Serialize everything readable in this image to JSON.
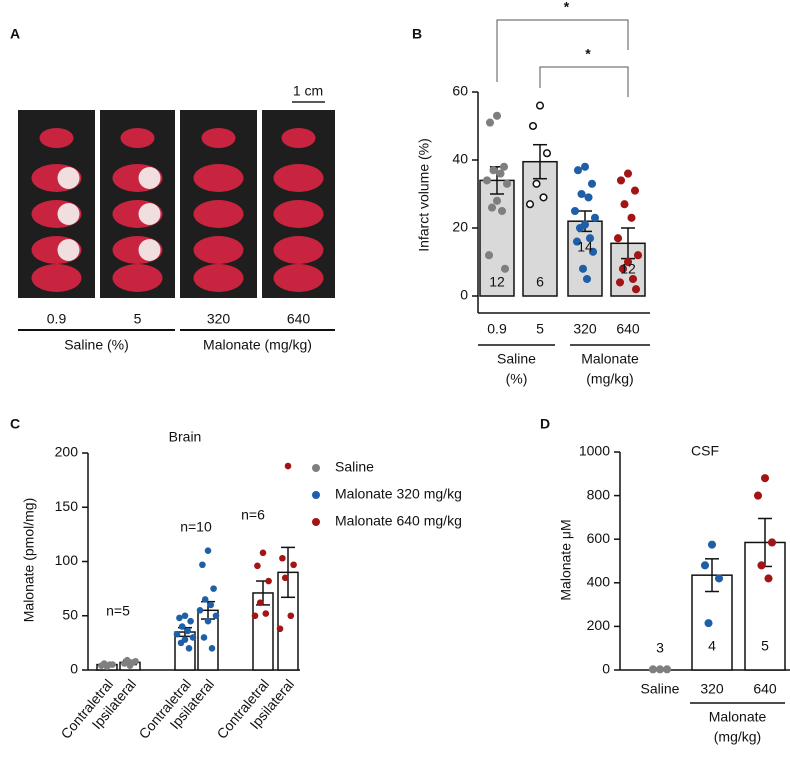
{
  "panel_a": {
    "label": "A",
    "scale_bar": "1 cm",
    "doses": [
      "0.9",
      "5",
      "320",
      "640"
    ],
    "groups": [
      "Saline (%)",
      "Malonate (mg/kg)"
    ]
  },
  "chart_data": [
    {
      "panel": "B",
      "type": "bar",
      "ylabel": "Infarct volume (%)",
      "categories": [
        "0.9",
        "5",
        "320",
        "640"
      ],
      "values": [
        34,
        39.5,
        22,
        15.5
      ],
      "errors": [
        4,
        5,
        3,
        4.5
      ],
      "n_labels": [
        "12",
        "6",
        "14",
        "12"
      ],
      "bar_color": "#d9d9d9",
      "point_colors": [
        "#7f7f7f",
        "#ffffff",
        "#1f5fa8",
        "#a31515"
      ],
      "points": [
        [
          53,
          51,
          38,
          37,
          36,
          34,
          33,
          28,
          26,
          25,
          12,
          8
        ],
        [
          56,
          50,
          42,
          33,
          29,
          27
        ],
        [
          38,
          37,
          33,
          30,
          29,
          25,
          23,
          21,
          20,
          17,
          16,
          13,
          8,
          5
        ],
        [
          36,
          34,
          31,
          27,
          23,
          17,
          12,
          10,
          8,
          5,
          4,
          2
        ]
      ],
      "groups": [
        {
          "name": "Saline",
          "unit": "(%)"
        },
        {
          "name": "Malonate",
          "unit": "(mg/kg)"
        }
      ],
      "significance": [
        {
          "label": "*",
          "from": "0.9",
          "to": "640"
        },
        {
          "label": "*",
          "from": "5",
          "to": "640"
        }
      ],
      "ylim": [
        -5,
        60
      ],
      "yticks": [
        0,
        20,
        40,
        60
      ]
    },
    {
      "panel": "C",
      "type": "grouped-bar",
      "title": "Brain",
      "ylabel": "Malonate (pmol/mg)",
      "categories": [
        "Contraletral",
        "Ipsilateral"
      ],
      "bar_color": "#ffffff",
      "series": [
        {
          "name": "Saline",
          "color": "#7f7f7f",
          "values": [
            5,
            7
          ],
          "errors": [
            1,
            2
          ],
          "n_label": "n=5",
          "points": [
            [
              3,
              4,
              5,
              6,
              5
            ],
            [
              4,
              6,
              8,
              9,
              7
            ]
          ]
        },
        {
          "name": "Malonate 320 mg/kg",
          "color": "#1f5fa8",
          "values": [
            35,
            55
          ],
          "errors": [
            4,
            8
          ],
          "n_label": "n=10",
          "points": [
            [
              50,
              48,
              45,
              40,
              36,
              33,
              30,
              28,
              25,
              20
            ],
            [
              110,
              97,
              75,
              65,
              60,
              55,
              50,
              45,
              30,
              20
            ]
          ]
        },
        {
          "name": "Malonate 640 mg/kg",
          "color": "#a31515",
          "values": [
            71,
            90
          ],
          "errors": [
            11,
            23
          ],
          "n_label": "n=6",
          "points": [
            [
              108,
              96,
              82,
              62,
              52,
              50
            ],
            [
              188,
              103,
              97,
              85,
              50,
              38
            ]
          ]
        }
      ],
      "ylim": [
        0,
        200
      ],
      "yticks": [
        0,
        50,
        100,
        150,
        200
      ]
    },
    {
      "panel": "D",
      "type": "bar",
      "title": "CSF",
      "ylabel": "Malonate μM",
      "categories": [
        "Saline",
        "320",
        "640"
      ],
      "values": [
        3,
        435,
        585
      ],
      "errors": [
        0,
        75,
        110
      ],
      "n_labels": [
        "3",
        "4",
        "5"
      ],
      "bar_color": "#ffffff",
      "point_colors": [
        "#7f7f7f",
        "#1f5fa8",
        "#a31515"
      ],
      "points": [
        [
          3,
          3,
          3
        ],
        [
          575,
          480,
          420,
          215
        ],
        [
          880,
          800,
          585,
          480,
          420
        ]
      ],
      "groups": [
        {
          "name": "Malonate",
          "unit": "(mg/kg)"
        }
      ],
      "ylim": [
        0,
        1000
      ],
      "yticks": [
        0,
        200,
        400,
        600,
        800,
        1000
      ]
    }
  ]
}
